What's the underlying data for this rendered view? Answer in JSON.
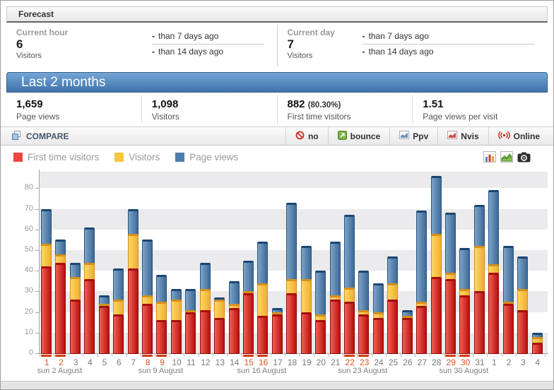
{
  "window": {
    "title": "Forecast"
  },
  "panels": {
    "current_hour": {
      "label": "Current hour",
      "value": "6",
      "unit": "Visitors",
      "rows": [
        {
          "sign": "-",
          "text": "than 7 days ago"
        },
        {
          "sign": "-",
          "text": "than 14 days ago"
        }
      ]
    },
    "current_day": {
      "label": "Current day",
      "value": "7",
      "unit": "Visitors",
      "rows": [
        {
          "sign": "-",
          "text": "than 7 days ago"
        },
        {
          "sign": "-",
          "text": "than 14 days ago"
        }
      ]
    }
  },
  "period_banner": {
    "title": "Last 2 months"
  },
  "summary_stats": [
    {
      "value": "1,659",
      "label": "Page views"
    },
    {
      "value": "1,098",
      "label": "Visitors"
    },
    {
      "value": "882",
      "extra": "(80.30%)",
      "label": "First time visitors"
    },
    {
      "value": "1.51",
      "label": "Page views per visit"
    }
  ],
  "toolbar": {
    "compare_label": "COMPARE",
    "buttons": [
      {
        "label": "no",
        "icon": "no-icon"
      },
      {
        "label": "bounce",
        "icon": "bounce-arrow-icon"
      },
      {
        "label": "Ppv",
        "icon": "pageviews-mini-chart-icon"
      },
      {
        "label": "Nvis",
        "icon": "visits-mini-chart-icon"
      },
      {
        "label": "Online",
        "icon": "online-broadcast-icon"
      }
    ]
  },
  "chart_header": {
    "legend": [
      {
        "label": "First time visitors",
        "color": "#ee4540"
      },
      {
        "label": "Visitors",
        "color": "#f7c63f"
      },
      {
        "label": "Page views",
        "color": "#4e7cad"
      }
    ],
    "view_buttons": [
      "bar-chart-icon",
      "area-chart-icon",
      "camera-icon"
    ]
  },
  "chart_data": {
    "type": "bar",
    "categories": [
      "1",
      "2",
      "3",
      "4",
      "5",
      "6",
      "7",
      "8",
      "9",
      "10",
      "11",
      "12",
      "13",
      "14",
      "15",
      "16",
      "17",
      "18",
      "19",
      "20",
      "21",
      "22",
      "23",
      "24",
      "25",
      "26",
      "27",
      "28",
      "29",
      "30",
      "31",
      "1",
      "2",
      "3",
      "4"
    ],
    "series": [
      {
        "name": "First time visitors",
        "color": "#d22b1f",
        "values": [
          42,
          44,
          26,
          36,
          23,
          19,
          41,
          24,
          16,
          16,
          20,
          21,
          17,
          22,
          29,
          18,
          19,
          29,
          20,
          16,
          26,
          25,
          19,
          17,
          26,
          17,
          23,
          37,
          36,
          28,
          30,
          39,
          24,
          21,
          5
        ]
      },
      {
        "name": "Visitors",
        "color": "#f7c63f",
        "values": [
          53,
          48,
          37,
          44,
          24,
          26,
          58,
          28,
          25,
          26,
          21,
          31,
          26,
          24,
          30,
          34,
          20,
          36,
          36,
          19,
          28,
          32,
          21,
          20,
          34,
          18,
          25,
          58,
          39,
          31,
          52,
          43,
          25,
          31,
          8
        ]
      },
      {
        "name": "Page views",
        "color": "#4e7cad",
        "values": [
          70,
          55,
          44,
          61,
          28,
          41,
          70,
          55,
          38,
          31,
          31,
          44,
          27,
          35,
          45,
          54,
          22,
          73,
          52,
          40,
          54,
          67,
          40,
          34,
          47,
          21,
          69,
          86,
          68,
          51,
          72,
          79,
          52,
          47,
          10
        ]
      }
    ],
    "xlabel": "",
    "ylabel": "",
    "ylim": [
      0,
      88
    ],
    "yticks": [
      0,
      10,
      20,
      30,
      40,
      50,
      60,
      70,
      80
    ],
    "grid": "alternating-horizontal-bands",
    "legend_position": "top-left",
    "weekend_indices": [
      0,
      1,
      7,
      8,
      14,
      15,
      21,
      22,
      28,
      29
    ],
    "weekend_label_color": "#e2511f",
    "week_markers": [
      {
        "index": 1,
        "label": "sun 2 August"
      },
      {
        "index": 8,
        "label": "sun 9 August"
      },
      {
        "index": 15,
        "label": "sun 16 August"
      },
      {
        "index": 22,
        "label": "sun 23 August"
      },
      {
        "index": 29,
        "label": "sun 30 August"
      }
    ]
  }
}
